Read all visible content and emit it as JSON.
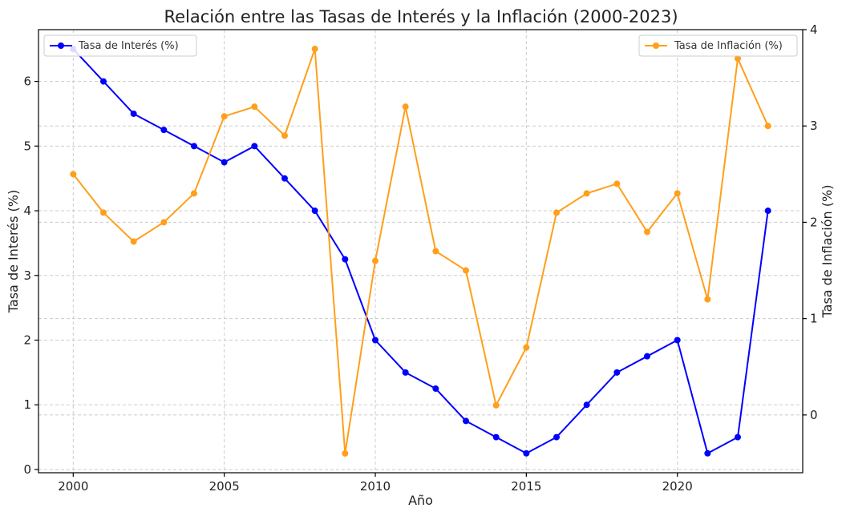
{
  "chart_data": {
    "type": "line",
    "title": "Relación entre las Tasas de Interés y la Inflación (2000-2023)",
    "xlabel": "Año",
    "ylabel_left": "Tasa de Interés (%)",
    "ylabel_right": "Tasa de Inflación (%)",
    "x": [
      2000,
      2001,
      2002,
      2003,
      2004,
      2005,
      2006,
      2007,
      2008,
      2009,
      2010,
      2011,
      2012,
      2013,
      2014,
      2015,
      2016,
      2017,
      2018,
      2019,
      2020,
      2021,
      2022,
      2023
    ],
    "xlim": [
      1998.85,
      2024.15
    ],
    "xticks": [
      2000,
      2005,
      2010,
      2015,
      2020
    ],
    "ylim_left": [
      -0.05,
      6.8
    ],
    "yticks_left": [
      0,
      1,
      2,
      3,
      4,
      5,
      6
    ],
    "ylim_right": [
      -0.6,
      4.0
    ],
    "yticks_right": [
      0,
      1,
      2,
      3,
      4
    ],
    "grid": true,
    "series": [
      {
        "name": "Tasa de Interés (%)",
        "axis": "left",
        "color": "#0000ff",
        "values": [
          6.5,
          6.0,
          5.5,
          5.25,
          5.0,
          4.75,
          5.0,
          4.5,
          4.0,
          3.25,
          2.0,
          1.5,
          1.25,
          0.75,
          0.5,
          0.25,
          0.5,
          1.0,
          1.5,
          1.75,
          2.0,
          0.25,
          0.5,
          4.0
        ],
        "legend": "top-left"
      },
      {
        "name": "Tasa de Inflación (%)",
        "axis": "right",
        "color": "#ff9f1a",
        "values": [
          2.5,
          2.1,
          1.8,
          2.0,
          2.3,
          3.1,
          3.2,
          2.9,
          3.8,
          -0.4,
          1.6,
          3.2,
          1.7,
          1.5,
          0.1,
          0.7,
          2.1,
          2.3,
          2.4,
          1.9,
          2.3,
          1.2,
          3.7,
          3.0
        ],
        "legend": "top-right"
      }
    ]
  }
}
